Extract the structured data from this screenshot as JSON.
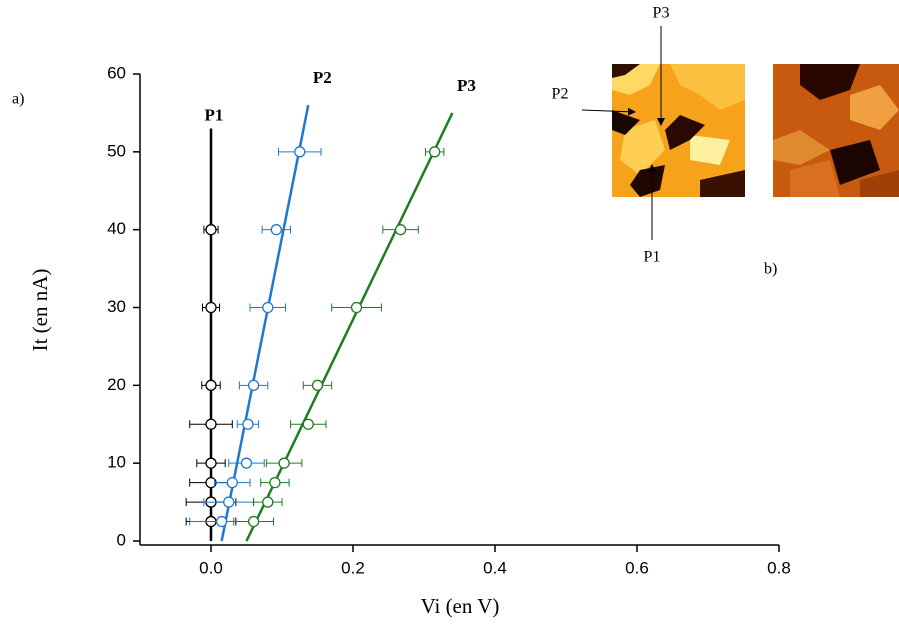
{
  "chart_data": {
    "type": "scatter",
    "x_label": "Vi (en V)",
    "y_label": "It (en nA)",
    "annotations": [
      "a)",
      "b)"
    ],
    "xlim": [
      -0.1,
      0.8
    ],
    "ylim": [
      0,
      60
    ],
    "xticks": [
      {
        "value": 0,
        "label": "0.0"
      },
      0.2,
      0.4,
      0.6,
      0.8
    ],
    "yticks": [
      0,
      10,
      20,
      30,
      40,
      50,
      60
    ],
    "series": [
      {
        "name": "P1",
        "color": "#000000",
        "x": [
          0,
          0,
          0,
          0,
          0,
          0,
          0,
          0
        ],
        "values": [
          2.5,
          5,
          7.5,
          10,
          15,
          20,
          30,
          40
        ],
        "xerr": [
          0.035,
          0.035,
          0.03,
          0.02,
          0.03,
          0.013,
          0.012,
          0.01
        ],
        "fit": {
          "x": [
            0,
            0
          ],
          "values": [
            0,
            53
          ]
        }
      },
      {
        "name": "P2",
        "color": "#1f78d0",
        "x": [
          0.015,
          0.025,
          0.03,
          0.05,
          0.052,
          0.06,
          0.08,
          0.092,
          0.125
        ],
        "values": [
          2.5,
          5,
          7.5,
          10,
          15,
          20,
          30,
          40,
          50
        ],
        "xerr": [
          0.045,
          0.035,
          0.025,
          0.025,
          0.015,
          0.02,
          0.025,
          0.02,
          0.03
        ],
        "fit": {
          "x": [
            0.015,
            0.137
          ],
          "values": [
            0,
            56
          ]
        }
      },
      {
        "name": "P3",
        "color": "#1e7d1e",
        "x": [
          0.06,
          0.08,
          0.09,
          0.103,
          0.137,
          0.15,
          0.205,
          0.267,
          0.315
        ],
        "values": [
          2.5,
          5,
          7.5,
          10,
          15,
          20,
          30,
          40,
          50
        ],
        "xerr": [
          0.028,
          0.02,
          0.02,
          0.025,
          0.025,
          0.02,
          0.035,
          0.025,
          0.013
        ],
        "fit": {
          "x": [
            0.05,
            0.34
          ],
          "values": [
            0,
            55
          ]
        }
      }
    ]
  }
}
